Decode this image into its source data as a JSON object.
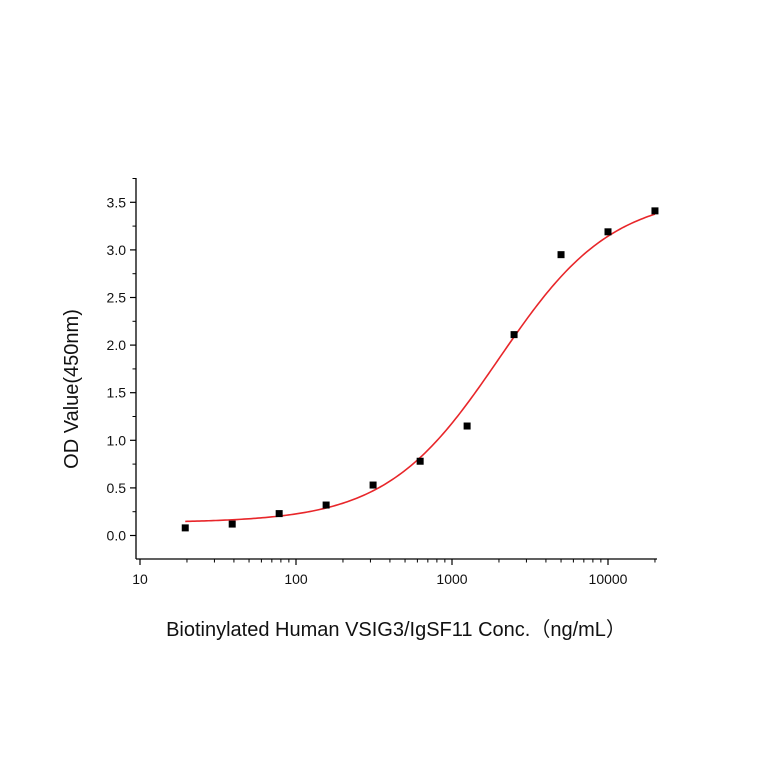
{
  "chart_data": {
    "type": "scatter",
    "title": "",
    "xlabel": "Biotinylated Human VSIG3/IgSF11 Conc.（ng/mL）",
    "ylabel": "OD Value(450nm)",
    "x_scale": "log",
    "xlim": [
      10,
      20000
    ],
    "ylim": [
      -0.25,
      3.75
    ],
    "x_ticks": [
      10,
      100,
      1000,
      10000
    ],
    "x_tick_labels": [
      "10",
      "100",
      "1000",
      "10000"
    ],
    "y_ticks": [
      0.0,
      0.5,
      1.0,
      1.5,
      2.0,
      2.5,
      3.0,
      3.5
    ],
    "y_tick_labels": [
      "0.0",
      "0.5",
      "1.0",
      "1.5",
      "2.0",
      "2.5",
      "3.0",
      "3.5"
    ],
    "grid": false,
    "legend": "none",
    "series": [
      {
        "kind": "points",
        "marker": "square",
        "color": "#000000",
        "x": [
          19.5,
          39,
          78,
          156,
          312,
          625,
          1250,
          2500,
          5000,
          10000,
          20000
        ],
        "y": [
          0.08,
          0.12,
          0.23,
          0.32,
          0.53,
          0.78,
          1.15,
          2.11,
          2.95,
          3.19,
          3.41
        ]
      },
      {
        "kind": "fit",
        "model": "4PL",
        "color": "#e8262a",
        "bottom": 0.135,
        "top": 3.58,
        "ec50": 2000,
        "hill": 1.2,
        "x_range": [
          19.5,
          20000
        ]
      }
    ]
  }
}
